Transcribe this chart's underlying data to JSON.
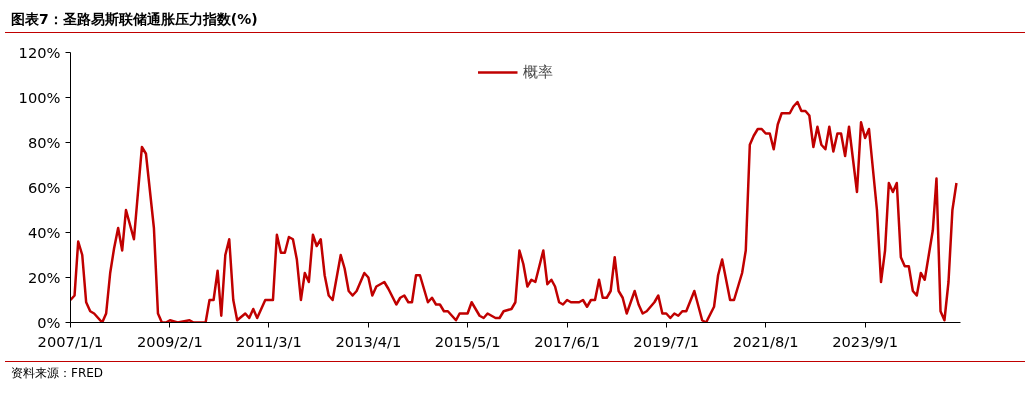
{
  "chart_data": {
    "type": "line",
    "title": "图表7：圣路易斯联储通胀压力指数(%)",
    "annotations": [
      "资料来源：FRED"
    ],
    "x": [
      "2007-01",
      "2007-02",
      "2007-03",
      "2007-04",
      "2007-05",
      "2007-06",
      "2007-07",
      "2007-09",
      "2007-10",
      "2007-11",
      "2007-12",
      "2008-01",
      "2008-02",
      "2008-03",
      "2008-05",
      "2008-07",
      "2008-08",
      "2008-10",
      "2008-11",
      "2008-12",
      "2009-01",
      "2009-02",
      "2009-04",
      "2009-07",
      "2009-08",
      "2009-11",
      "2009-12",
      "2010-01",
      "2010-02",
      "2010-03",
      "2010-04",
      "2010-05",
      "2010-06",
      "2010-07",
      "2010-09",
      "2010-10",
      "2010-11",
      "2010-12",
      "2011-02",
      "2011-04",
      "2011-05",
      "2011-06",
      "2011-07",
      "2011-08",
      "2011-09",
      "2011-10",
      "2011-11",
      "2011-12",
      "2012-01",
      "2012-02",
      "2012-03",
      "2012-04",
      "2012-05",
      "2012-06",
      "2012-07",
      "2012-09",
      "2012-10",
      "2012-11",
      "2012-12",
      "2013-01",
      "2013-03",
      "2013-04",
      "2013-05",
      "2013-06",
      "2013-08",
      "2013-09",
      "2013-11",
      "2013-12",
      "2014-01",
      "2014-02",
      "2014-03",
      "2014-04",
      "2014-05",
      "2014-07",
      "2014-08",
      "2014-09",
      "2014-10",
      "2014-11",
      "2014-12",
      "2015-02",
      "2015-03",
      "2015-05",
      "2015-06",
      "2015-08",
      "2015-09",
      "2015-10",
      "2015-12",
      "2016-01",
      "2016-02",
      "2016-04",
      "2016-05",
      "2016-06",
      "2016-07",
      "2016-08",
      "2016-09",
      "2016-10",
      "2016-12",
      "2017-01",
      "2017-02",
      "2017-03",
      "2017-04",
      "2017-05",
      "2017-06",
      "2017-07",
      "2017-09",
      "2017-10",
      "2017-11",
      "2017-12",
      "2018-01",
      "2018-02",
      "2018-03",
      "2018-04",
      "2018-05",
      "2018-06",
      "2018-07",
      "2018-08",
      "2018-09",
      "2018-11",
      "2018-12",
      "2019-01",
      "2019-02",
      "2019-04",
      "2019-05",
      "2019-06",
      "2019-07",
      "2019-08",
      "2019-09",
      "2019-10",
      "2019-11",
      "2019-12",
      "2020-02",
      "2020-04",
      "2020-05",
      "2020-07",
      "2020-08",
      "2020-09",
      "2020-11",
      "2020-12",
      "2021-02",
      "2021-03",
      "2021-04",
      "2021-05",
      "2021-06",
      "2021-07",
      "2021-08",
      "2021-09",
      "2021-10",
      "2021-11",
      "2021-12",
      "2022-02",
      "2022-03",
      "2022-04",
      "2022-05",
      "2022-06",
      "2022-07",
      "2022-08",
      "2022-09",
      "2022-10",
      "2022-11",
      "2022-12",
      "2023-01",
      "2023-02",
      "2023-03",
      "2023-04",
      "2023-05",
      "2023-07",
      "2023-08",
      "2023-09",
      "2023-10",
      "2023-12",
      "2024-01",
      "2024-02",
      "2024-03",
      "2024-04",
      "2024-05",
      "2024-06",
      "2024-07",
      "2024-08",
      "2024-09",
      "2024-10",
      "2024-11",
      "2024-12",
      "2025-02",
      "2025-03",
      "2025-04",
      "2025-05",
      "2025-06",
      "2025-07",
      "2025-08"
    ],
    "series": [
      {
        "name": "概率",
        "color": "#c00000",
        "values": [
          10,
          12,
          36,
          30,
          9,
          5,
          4,
          0,
          4,
          22,
          33,
          42,
          32,
          50,
          37,
          78,
          75,
          42,
          4,
          0,
          0,
          1,
          0,
          1,
          0,
          0,
          10,
          10,
          23,
          3,
          30,
          37,
          10,
          1,
          4,
          2,
          6,
          2,
          10,
          10,
          39,
          31,
          31,
          38,
          37,
          28,
          10,
          22,
          18,
          39,
          34,
          37,
          21,
          12,
          10,
          30,
          24,
          14,
          12,
          14,
          22,
          20,
          12,
          16,
          18,
          15,
          8,
          11,
          12,
          9,
          9,
          21,
          21,
          9,
          11,
          8,
          8,
          5,
          5,
          1,
          4,
          4,
          9,
          3,
          2,
          4,
          2,
          2,
          5,
          6,
          9,
          32,
          26,
          16,
          19,
          18,
          32,
          17,
          19,
          16,
          9,
          8,
          10,
          9,
          9,
          10,
          7,
          10,
          10,
          19,
          11,
          11,
          14,
          29,
          14,
          11,
          4,
          14,
          8,
          4,
          5,
          9,
          12,
          4,
          4,
          2,
          4,
          3,
          5,
          5,
          14,
          1,
          0,
          7,
          21,
          28,
          10,
          10,
          22,
          32,
          79,
          83,
          86,
          86,
          84,
          84,
          77,
          88,
          93,
          93,
          96,
          98,
          94,
          94,
          92,
          78,
          87,
          79,
          77,
          87,
          76,
          84,
          84,
          74,
          87,
          58,
          89,
          82,
          86,
          50,
          18,
          32,
          62,
          58,
          62,
          29,
          25,
          25,
          14,
          12,
          22,
          19,
          41,
          64,
          5,
          1,
          18,
          50,
          62
        ]
      }
    ],
    "xlim": [
      "2007-01",
      "2025-09"
    ],
    "xticks": [
      {
        "value": "2007-01-01",
        "label": "2007/1/1"
      },
      {
        "value": "2009-02-01",
        "label": "2009/2/1"
      },
      {
        "value": "2011-03-01",
        "label": "2011/3/1"
      },
      {
        "value": "2013-04-01",
        "label": "2013/4/1"
      },
      {
        "value": "2015-05-01",
        "label": "2015/5/1"
      },
      {
        "value": "2017-06-01",
        "label": "2017/6/1"
      },
      {
        "value": "2019-07-01",
        "label": "2019/7/1"
      },
      {
        "value": "2021-08-01",
        "label": "2021/8/1"
      },
      {
        "value": "2023-09-01",
        "label": "2023/9/1"
      }
    ],
    "ylim": [
      0,
      120
    ],
    "yticks": [
      {
        "value": 0,
        "label": "0%"
      },
      {
        "value": 20,
        "label": "20%"
      },
      {
        "value": 40,
        "label": "40%"
      },
      {
        "value": 60,
        "label": "60%"
      },
      {
        "value": 80,
        "label": "80%"
      },
      {
        "value": 100,
        "label": "100%"
      },
      {
        "value": 120,
        "label": "120%"
      }
    ],
    "legend": "top",
    "grid": false,
    "line_style": "solid"
  }
}
